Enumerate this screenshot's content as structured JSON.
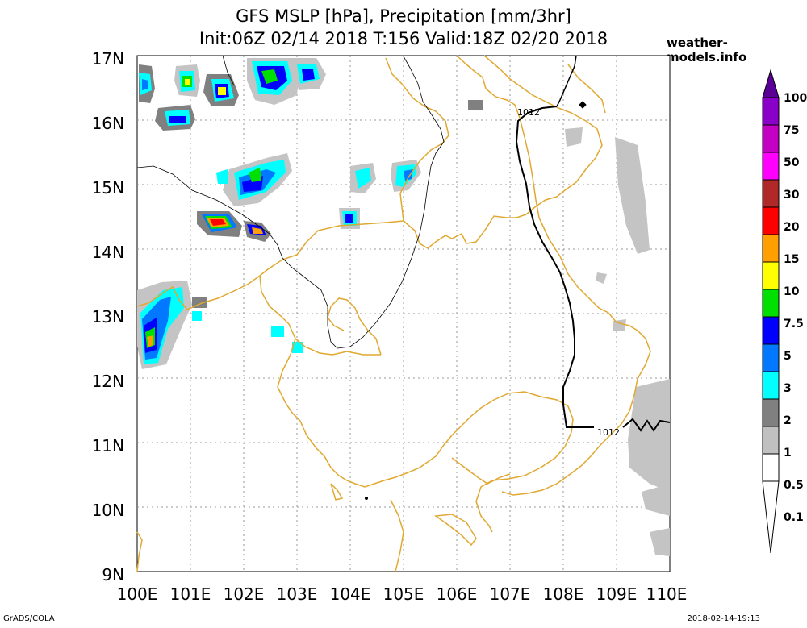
{
  "title": {
    "line1": "GFS MSLP [hPa], Precipitation [mm/3hr]",
    "line2": "Init:06Z 02/14 2018 T:156 Valid:18Z 02/20 2018"
  },
  "site": "weather-models.info",
  "footer": {
    "left": "GrADS/COLA",
    "right": "2018-02-14-19:13"
  },
  "map": {
    "lon_labels": [
      "100E",
      "101E",
      "102E",
      "103E",
      "104E",
      "105E",
      "106E",
      "107E",
      "108E",
      "109E",
      "110E"
    ],
    "lat_labels": [
      "17N",
      "16N",
      "15N",
      "14N",
      "13N",
      "12N",
      "11N",
      "10N",
      "9N"
    ],
    "isobar_labels": [
      "1012",
      "1012"
    ]
  },
  "colorbar": {
    "labels": [
      "100",
      "75",
      "50",
      "30",
      "20",
      "15",
      "10",
      "7.5",
      "5",
      "3",
      "2",
      "1",
      "0.5",
      "0.1"
    ],
    "colors": [
      "#8a00c8",
      "#c400c4",
      "#ff00ff",
      "#b02828",
      "#ff0000",
      "#ffa000",
      "#ffff00",
      "#00e000",
      "#0000ff",
      "#0078ff",
      "#00ffff",
      "#808080",
      "#c0c0c0",
      "#ffffff"
    ]
  },
  "colors": {
    "coast": "#e0a830",
    "rain_light": "#c4c4c4",
    "rain_mid": "#808080"
  }
}
